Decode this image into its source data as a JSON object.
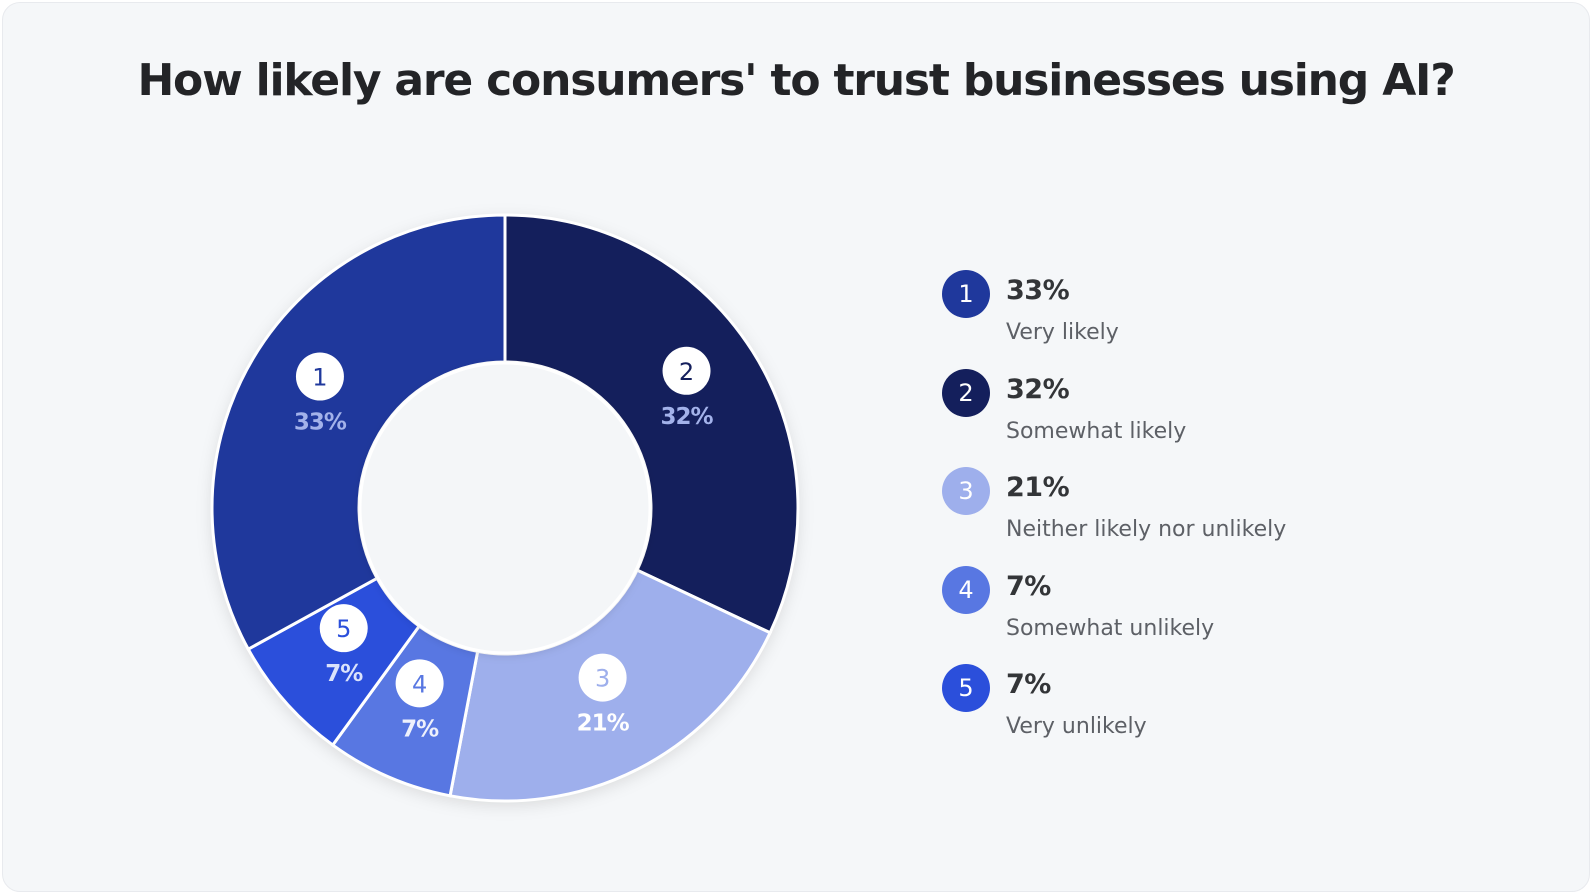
{
  "chart_data": {
    "type": "pie",
    "variant": "donut",
    "title": "How likely are consumers' to trust businesses using AI?",
    "slices": [
      {
        "id": "1",
        "label": "Very likely",
        "value": 33,
        "display": "33%",
        "color": "#1f389c",
        "pct_color": "#a3b2ea"
      },
      {
        "id": "2",
        "label": "Somewhat likely",
        "value": 32,
        "display": "32%",
        "color": "#141f5c",
        "pct_color": "#a3b2ea"
      },
      {
        "id": "3",
        "label": "Neither likely nor unlikely",
        "value": 21,
        "display": "21%",
        "color": "#9eafec",
        "pct_color": "#ffffff"
      },
      {
        "id": "4",
        "label": "Somewhat unlikely",
        "value": 7,
        "display": "7%",
        "color": "#5877e2",
        "pct_color": "#eef1fc"
      },
      {
        "id": "5",
        "label": "Very unlikely",
        "value": 7,
        "display": "7%",
        "color": "#2b4fdb",
        "pct_color": "#dbe3fb"
      }
    ],
    "draw_order": [
      "2",
      "3",
      "4",
      "5",
      "1"
    ],
    "start": "top",
    "direction": "clockwise",
    "legend_placement": "right"
  }
}
